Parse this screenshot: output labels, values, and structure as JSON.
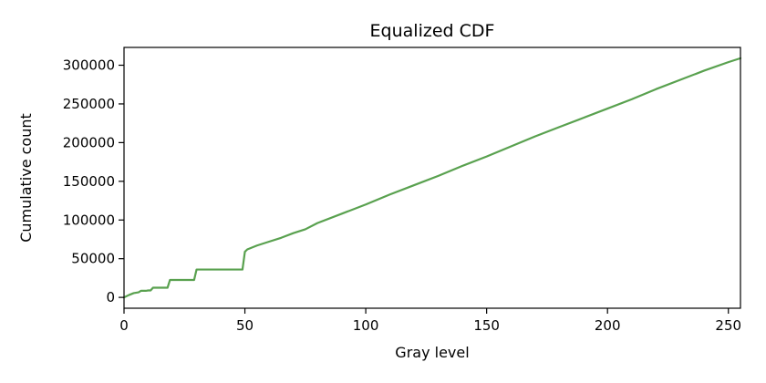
{
  "chart_data": {
    "type": "line",
    "title": "Equalized CDF",
    "xlabel": "Gray level",
    "ylabel": "Cumulative count",
    "xlim": [
      0,
      255
    ],
    "ylim": [
      -14000,
      323000
    ],
    "xticks": [
      0,
      50,
      100,
      150,
      200,
      250
    ],
    "yticks": [
      0,
      50000,
      100000,
      150000,
      200000,
      250000,
      300000
    ],
    "xtick_labels": [
      "0",
      "50",
      "100",
      "150",
      "200",
      "250"
    ],
    "ytick_labels": [
      "0",
      "50000",
      "100000",
      "150000",
      "200000",
      "250000",
      "300000"
    ],
    "grid": false,
    "legend": "none",
    "series": [
      {
        "color": "#59a14f",
        "x": [
          0,
          2,
          4,
          6,
          7,
          9,
          10,
          11,
          12,
          13,
          14,
          16,
          18,
          19,
          26,
          28,
          29,
          30,
          49,
          50,
          51,
          55,
          60,
          65,
          70,
          75,
          80,
          90,
          100,
          110,
          120,
          130,
          140,
          150,
          160,
          170,
          180,
          190,
          200,
          210,
          220,
          230,
          240,
          250,
          255
        ],
        "y": [
          0,
          3000,
          5500,
          6500,
          8500,
          8500,
          9000,
          9000,
          12500,
          12500,
          12500,
          12500,
          12500,
          22500,
          22500,
          22500,
          22500,
          36000,
          36000,
          59000,
          62000,
          67000,
          72000,
          77000,
          83000,
          88000,
          96000,
          108000,
          120000,
          133000,
          145000,
          157000,
          170000,
          182000,
          195000,
          208000,
          220000,
          232000,
          244000,
          256000,
          269000,
          281000,
          293000,
          304000,
          309000
        ]
      }
    ]
  }
}
